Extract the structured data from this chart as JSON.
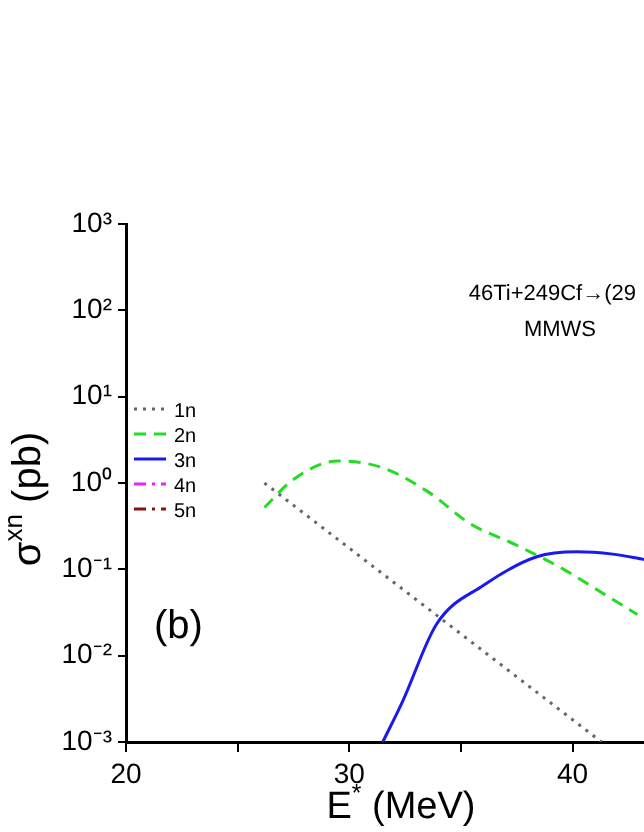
{
  "chart_data": {
    "type": "line",
    "xlabel": "E$^{*}$ (MeV)",
    "ylabel": "σ$^{xn}$ (pb)",
    "log": "y",
    "grid": false,
    "legend": "left",
    "marker": "none",
    "xlim": [
      20,
      43.2
    ],
    "xticks": [
      20,
      {
        "value": 25,
        "label": null
      },
      30,
      {
        "value": 35,
        "label": null
      },
      40
    ],
    "ylim": [
      0.001,
      1000
    ],
    "yticks": [
      {
        "value": 0.001,
        "label": "10⁻³"
      },
      {
        "value": 0.01,
        "label": "10⁻²"
      },
      {
        "value": 0.1,
        "label": "10⁻¹"
      },
      {
        "value": 1,
        "label": "10⁰"
      },
      {
        "value": 10,
        "label": "10¹"
      },
      {
        "value": 100,
        "label": "10²"
      },
      {
        "value": 1000,
        "label": "10³"
      }
    ],
    "annotations": [
      "46Ti+249Cf→(29",
      "MMWS",
      "(b)"
    ],
    "series": [
      {
        "name": "1n",
        "color": "#666666",
        "line_style": "dotted",
        "x": [
          26.2,
          41.3
        ],
        "values": [
          1.0,
          0.001
        ]
      },
      {
        "name": "2n",
        "color": "#22dd22",
        "line_style": "dashed",
        "x": [
          26.2,
          27.5,
          29.5,
          31.5,
          33.5,
          35.4,
          37.5,
          39.6,
          41.5,
          42.9
        ],
        "values": [
          0.52,
          1.1,
          1.8,
          1.5,
          0.8,
          0.34,
          0.19,
          0.1,
          0.05,
          0.03
        ]
      },
      {
        "name": "3n",
        "color": "#1a1aee",
        "line_style": "solid",
        "x": [
          31.5,
          32.4,
          33.9,
          36.0,
          38.4,
          40.2,
          41.8,
          43.2
        ],
        "values": [
          0.001,
          0.003,
          0.023,
          0.065,
          0.14,
          0.16,
          0.15,
          0.13
        ]
      },
      {
        "name": "4n",
        "color": "#ee22ee",
        "line_style": "dashdot"
      },
      {
        "name": "5n",
        "color": "#881111",
        "line_style": "dashdot"
      }
    ]
  }
}
